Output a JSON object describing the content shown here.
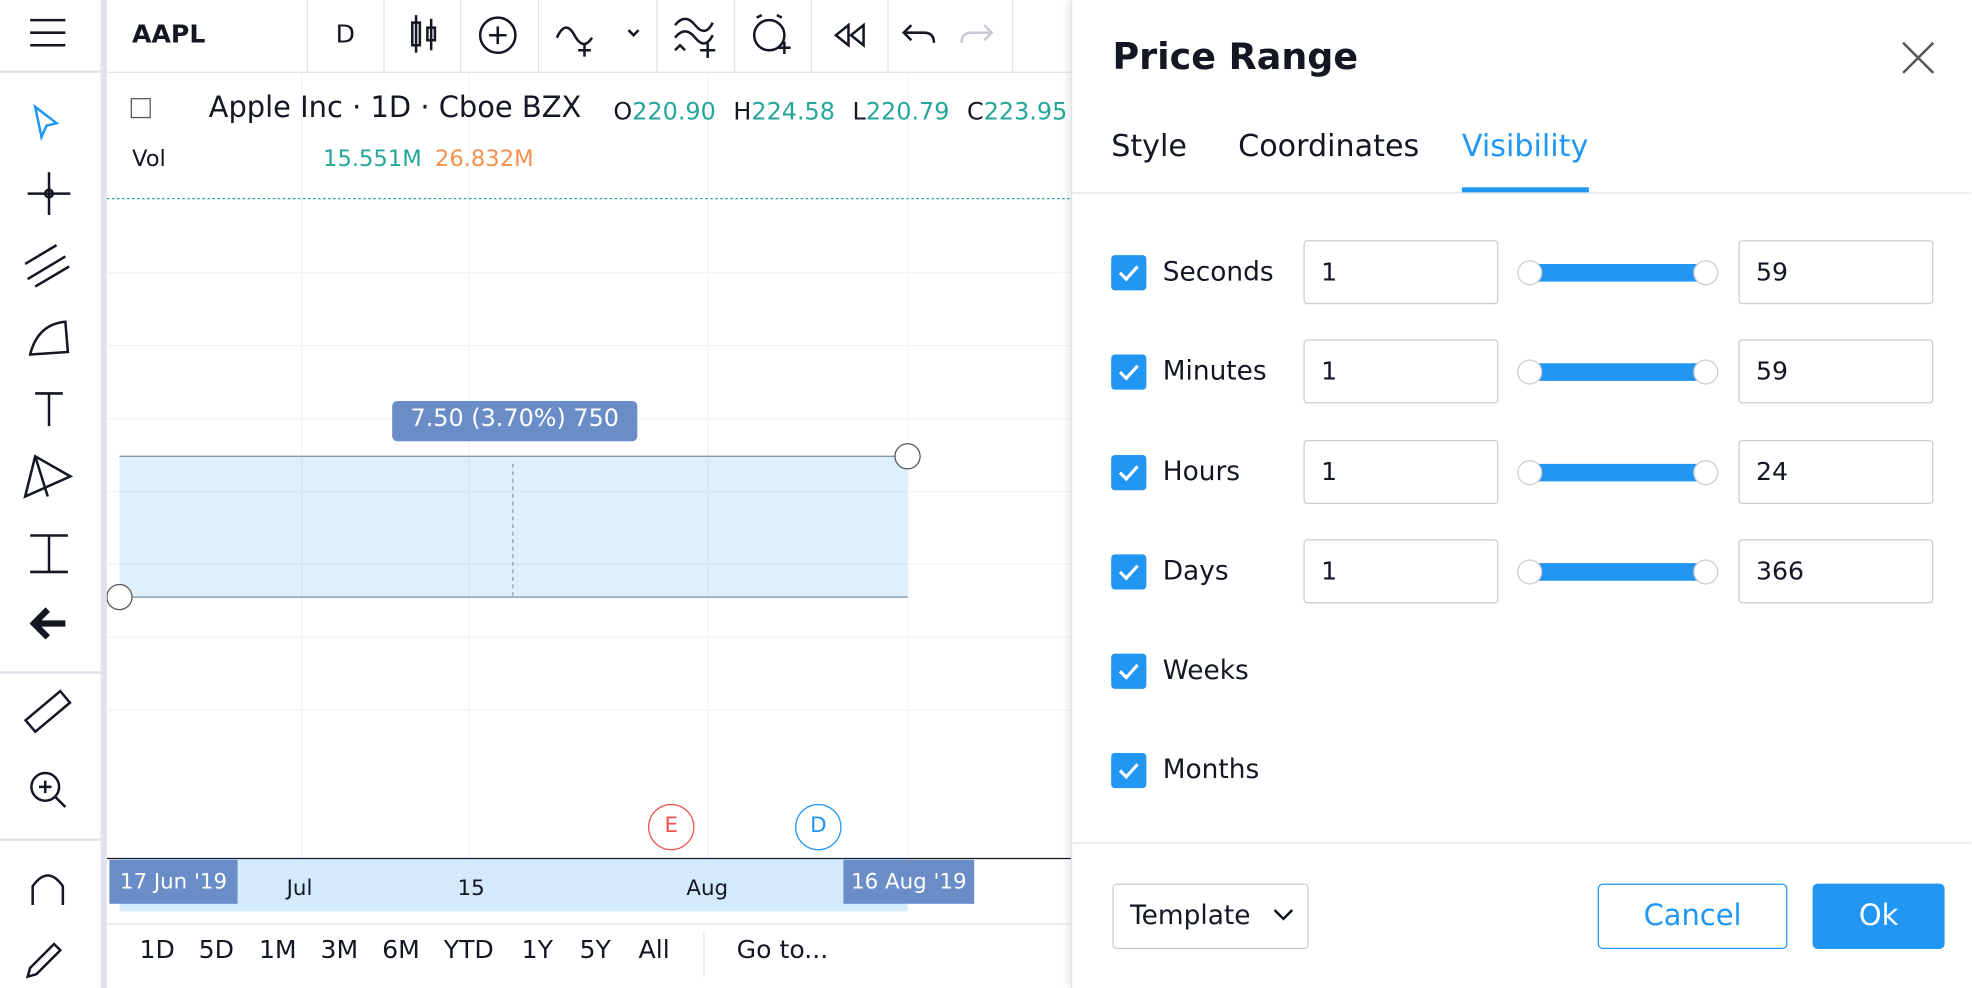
{
  "top_toolbar": {
    "symbol": "AAPL",
    "interval": "D"
  },
  "legend": {
    "title": "Apple Inc · 1D · Cboe BZX",
    "ohlc": [
      {
        "label": "O",
        "value": "220.90"
      },
      {
        "label": "H",
        "value": "224.58"
      },
      {
        "label": "L",
        "value": "220.79"
      },
      {
        "label": "C",
        "value": "223.95"
      }
    ],
    "volume": {
      "label": "Vol",
      "values": [
        "15.551M",
        "26.832M"
      ]
    }
  },
  "range_label": "7.50 (3.70%) 750",
  "markers": [
    "E",
    "D"
  ],
  "x_axis": {
    "start": "17 Jun '19",
    "labels": [
      "Jul",
      "15",
      "Aug"
    ],
    "end": "16 Aug '19"
  },
  "bottom_bar": {
    "timeframes": [
      "1D",
      "5D",
      "1M",
      "3M",
      "6M",
      "YTD",
      "1Y",
      "5Y",
      "All"
    ],
    "goto": "Go to..."
  },
  "dialog": {
    "title": "Price Range",
    "tabs": [
      "Style",
      "Coordinates",
      "Visibility"
    ],
    "active_tab": 2,
    "rows": [
      {
        "label": "Seconds",
        "checked": true,
        "from": "1",
        "to": "59"
      },
      {
        "label": "Minutes",
        "checked": true,
        "from": "1",
        "to": "59"
      },
      {
        "label": "Hours",
        "checked": true,
        "from": "1",
        "to": "24"
      },
      {
        "label": "Days",
        "checked": true,
        "from": "1",
        "to": "366"
      },
      {
        "label": "Weeks",
        "checked": true
      },
      {
        "label": "Months",
        "checked": true
      }
    ],
    "template": "Template",
    "cancel": "Cancel",
    "ok": "Ok"
  }
}
